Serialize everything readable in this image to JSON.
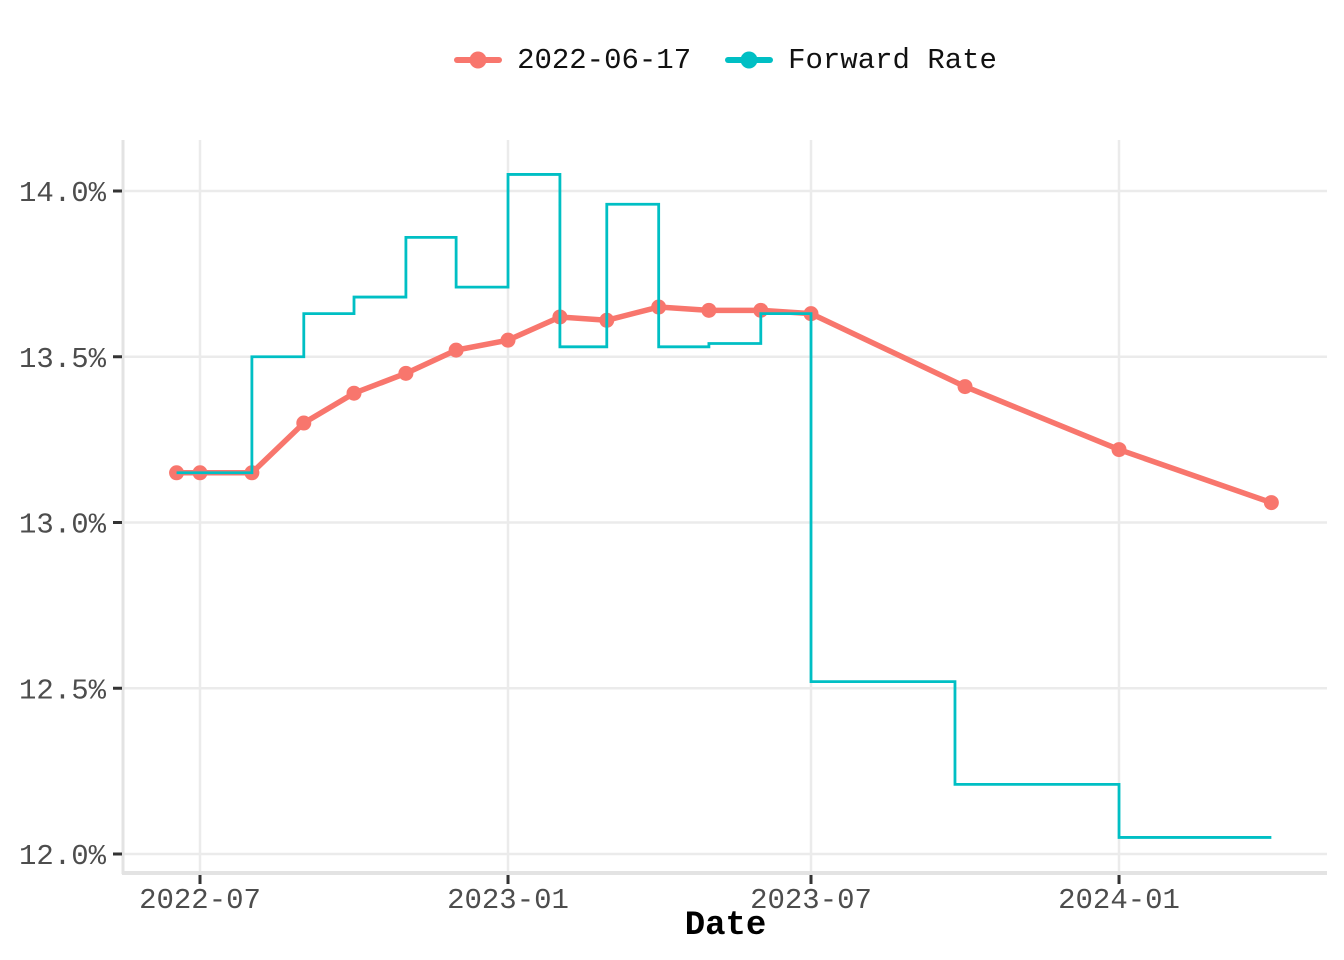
{
  "colors": {
    "series_red": "#F8766D",
    "series_teal": "#00BFC4",
    "gridline": "#EBEBEB",
    "axis_line": "#E3E3E3",
    "tick_mark": "#333333",
    "tick_label": "#4D4D4D",
    "title_text": "#000000",
    "background": "#FFFFFF"
  },
  "legend": {
    "items": [
      {
        "label": "2022-06-17",
        "color": "#F8766D"
      },
      {
        "label": "Forward Rate",
        "color": "#00BFC4"
      }
    ]
  },
  "axes": {
    "x": {
      "title": "Date",
      "ticks": [
        {
          "label": "2022-07",
          "date": "2022-07-01"
        },
        {
          "label": "2023-01",
          "date": "2023-01-01"
        },
        {
          "label": "2023-07",
          "date": "2023-07-01"
        },
        {
          "label": "2024-01",
          "date": "2024-01-01"
        }
      ]
    },
    "y": {
      "ticks": [
        {
          "label": "14.0%",
          "value": 14.0
        },
        {
          "label": "13.5%",
          "value": 13.5
        },
        {
          "label": "13.0%",
          "value": 13.0
        },
        {
          "label": "12.5%",
          "value": 12.5
        },
        {
          "label": "12.0%",
          "value": 12.0
        }
      ]
    }
  },
  "chart_data": {
    "type": "line",
    "title": "",
    "xlabel": "Date",
    "ylabel": "",
    "ylim": [
      11.95,
      14.15
    ],
    "xlim": [
      "2022-05-17",
      "2024-05-04"
    ],
    "grid": "on",
    "legend_position": "top",
    "y_tick_format": "percent",
    "series": [
      {
        "name": "2022-06-17",
        "style": "line_with_markers",
        "color": "#F8766D",
        "points": [
          [
            "2022-06-17",
            13.15
          ],
          [
            "2022-07-01",
            13.15
          ],
          [
            "2022-08-01",
            13.15
          ],
          [
            "2022-09-01",
            13.3
          ],
          [
            "2022-10-01",
            13.39
          ],
          [
            "2022-11-01",
            13.45
          ],
          [
            "2022-12-01",
            13.52
          ],
          [
            "2023-01-01",
            13.55
          ],
          [
            "2023-02-01",
            13.62
          ],
          [
            "2023-03-01",
            13.61
          ],
          [
            "2023-04-01",
            13.65
          ],
          [
            "2023-05-01",
            13.64
          ],
          [
            "2023-06-01",
            13.64
          ],
          [
            "2023-07-01",
            13.63
          ],
          [
            "2023-10-01",
            13.41
          ],
          [
            "2024-01-01",
            13.22
          ],
          [
            "2024-04-01",
            13.06
          ]
        ]
      },
      {
        "name": "Forward Rate",
        "style": "step",
        "color": "#00BFC4",
        "steps": [
          {
            "from": "2022-06-17",
            "to": "2022-08-01",
            "value": 13.15
          },
          {
            "from": "2022-08-01",
            "to": "2022-09-01",
            "value": 13.5
          },
          {
            "from": "2022-09-01",
            "to": "2022-10-01",
            "value": 13.63
          },
          {
            "from": "2022-10-01",
            "to": "2022-11-01",
            "value": 13.68
          },
          {
            "from": "2022-11-01",
            "to": "2022-12-01",
            "value": 13.86
          },
          {
            "from": "2022-12-01",
            "to": "2023-01-01",
            "value": 13.71
          },
          {
            "from": "2023-01-01",
            "to": "2023-02-01",
            "value": 14.05
          },
          {
            "from": "2023-02-01",
            "to": "2023-03-01",
            "value": 13.53
          },
          {
            "from": "2023-03-01",
            "to": "2023-04-01",
            "value": 13.96
          },
          {
            "from": "2023-04-01",
            "to": "2023-05-01",
            "value": 13.53
          },
          {
            "from": "2023-05-01",
            "to": "2023-06-01",
            "value": 13.54
          },
          {
            "from": "2023-06-01",
            "to": "2023-07-01",
            "value": 13.63
          },
          {
            "from": "2023-07-01",
            "to": "2023-09-25",
            "value": 12.52
          },
          {
            "from": "2023-09-25",
            "to": "2024-01-01",
            "value": 12.21
          },
          {
            "from": "2024-01-01",
            "to": "2024-04-01",
            "value": 12.05
          }
        ]
      }
    ]
  }
}
